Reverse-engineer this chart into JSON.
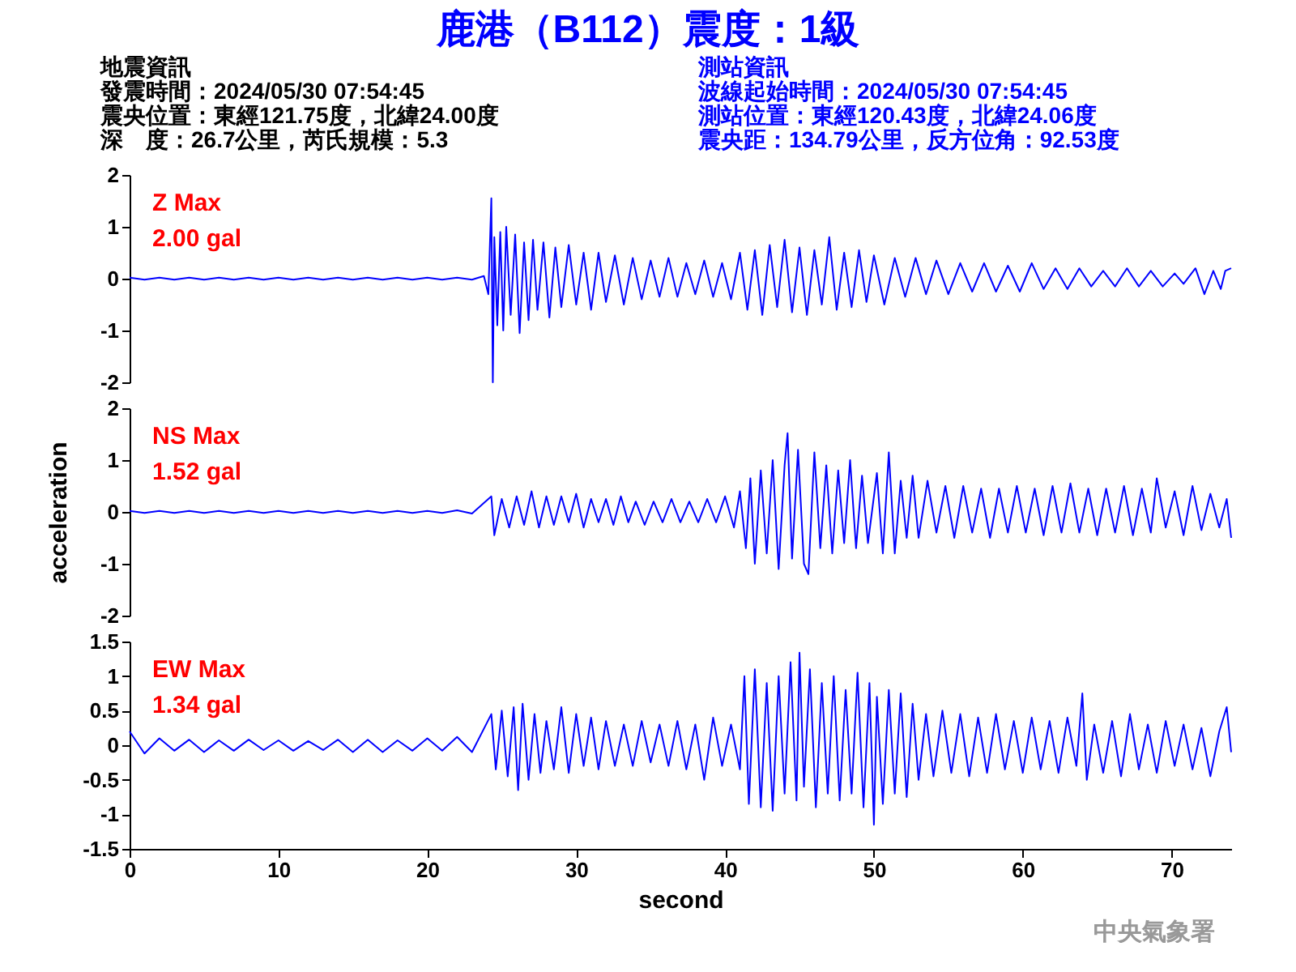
{
  "chart_data": [
    {
      "type": "other",
      "title": "鹿港（B112）震度：1級",
      "annotations": [
        "地震資訊",
        "發震時間：2024/05/30 07:54:45",
        "震央位置：東經121.75度，北緯24.00度",
        "深　度：26.7公里，芮氏規模：5.3",
        "測站資訊",
        "波線起始時間：2024/05/30 07:54:45",
        "測站位置：東經120.43度，北緯24.06度",
        "震央距：134.79公里，反方位角：92.53度"
      ]
    },
    {
      "type": "line",
      "xticks": [
        0,
        10,
        20,
        30,
        40,
        50,
        60,
        70
      ],
      "ylim": [
        -2,
        2
      ],
      "yticks": [
        -2,
        -1,
        0,
        1,
        2
      ],
      "tick_labels": "y",
      "annotations": [
        "Z Max",
        "2.00 gal"
      ],
      "x": [
        0,
        1,
        2,
        3,
        4,
        5,
        6,
        7,
        8,
        9,
        10,
        11,
        12,
        13,
        14,
        15,
        16,
        17,
        18,
        19,
        20,
        21,
        22,
        23,
        23.8,
        24.1,
        24.3,
        24.4,
        24.5,
        24.7,
        24.9,
        25.1,
        25.3,
        25.6,
        25.9,
        26.2,
        26.5,
        26.8,
        27.1,
        27.4,
        27.8,
        28.2,
        28.6,
        29,
        29.5,
        30,
        30.5,
        31,
        31.5,
        32,
        32.6,
        33.2,
        33.8,
        34.4,
        35,
        35.6,
        36.2,
        36.8,
        37.4,
        38,
        38.6,
        39.2,
        39.8,
        40.4,
        41,
        41.5,
        42,
        42.5,
        43,
        43.5,
        44,
        44.5,
        45,
        45.5,
        46,
        46.5,
        47,
        47.5,
        48,
        48.5,
        49,
        49.5,
        50,
        50.7,
        51.4,
        52.1,
        52.8,
        53.5,
        54.2,
        55,
        55.8,
        56.6,
        57.4,
        58.2,
        59,
        59.8,
        60.6,
        61.4,
        62.2,
        63,
        63.8,
        64.6,
        65.4,
        66.2,
        67,
        67.8,
        68.6,
        69.4,
        70.2,
        70.8,
        71.6,
        72.2,
        72.8,
        73.3,
        73.6,
        74
      ],
      "series": [
        {
          "color": "#0000ff",
          "values": [
            0.02,
            -0.02,
            0.02,
            -0.02,
            0.02,
            -0.02,
            0.02,
            -0.02,
            0.02,
            -0.02,
            0.02,
            -0.02,
            0.02,
            -0.02,
            0.02,
            -0.02,
            0.02,
            -0.02,
            0.02,
            -0.02,
            0.02,
            -0.02,
            0.02,
            -0.02,
            0.05,
            -0.3,
            1.55,
            -2.0,
            0.8,
            -0.9,
            0.9,
            -1.0,
            1.0,
            -0.7,
            0.85,
            -1.05,
            0.7,
            -0.8,
            0.75,
            -0.6,
            0.7,
            -0.75,
            0.6,
            -0.55,
            0.65,
            -0.5,
            0.5,
            -0.6,
            0.5,
            -0.45,
            0.45,
            -0.5,
            0.4,
            -0.4,
            0.35,
            -0.35,
            0.4,
            -0.35,
            0.3,
            -0.3,
            0.35,
            -0.35,
            0.3,
            -0.4,
            0.5,
            -0.6,
            0.55,
            -0.7,
            0.65,
            -0.55,
            0.75,
            -0.65,
            0.6,
            -0.7,
            0.55,
            -0.5,
            0.8,
            -0.6,
            0.5,
            -0.55,
            0.55,
            -0.45,
            0.45,
            -0.5,
            0.4,
            -0.35,
            0.4,
            -0.3,
            0.35,
            -0.3,
            0.3,
            -0.25,
            0.3,
            -0.25,
            0.25,
            -0.25,
            0.3,
            -0.2,
            0.2,
            -0.2,
            0.2,
            -0.15,
            0.15,
            -0.15,
            0.2,
            -0.15,
            0.15,
            -0.15,
            0.1,
            -0.1,
            0.2,
            -0.3,
            0.15,
            -0.2,
            0.15,
            0.2
          ]
        }
      ]
    },
    {
      "type": "line",
      "xticks": [
        0,
        10,
        20,
        30,
        40,
        50,
        60,
        70
      ],
      "ylim": [
        -2,
        2
      ],
      "yticks": [
        -2,
        -1,
        0,
        1,
        2
      ],
      "tick_labels": "y",
      "ylabel": "acceleration",
      "annotations": [
        "NS Max",
        "1.52 gal"
      ],
      "x": [
        0,
        1,
        2,
        3,
        4,
        5,
        6,
        7,
        8,
        9,
        10,
        11,
        12,
        13,
        14,
        15,
        16,
        17,
        18,
        19,
        20,
        21,
        22,
        23,
        24.3,
        24.5,
        25,
        25.5,
        26,
        26.5,
        27,
        27.5,
        28,
        28.5,
        29,
        29.5,
        30,
        30.5,
        31,
        31.5,
        32,
        32.5,
        33,
        33.5,
        34,
        34.6,
        35.2,
        35.8,
        36.4,
        37,
        37.6,
        38.2,
        38.8,
        39.4,
        40,
        40.6,
        41,
        41.4,
        41.7,
        42,
        42.4,
        42.8,
        43.2,
        43.6,
        44,
        44.2,
        44.5,
        44.9,
        45.3,
        45.6,
        46,
        46.4,
        46.8,
        47.2,
        47.6,
        48,
        48.4,
        48.8,
        49.2,
        49.6,
        50.2,
        50.6,
        51,
        51.4,
        51.8,
        52.2,
        52.6,
        53,
        53.6,
        54.2,
        54.8,
        55.4,
        56,
        56.6,
        57.2,
        57.8,
        58.4,
        59,
        59.6,
        60.2,
        60.8,
        61.4,
        62,
        62.6,
        63.2,
        63.8,
        64.4,
        65,
        65.6,
        66.2,
        66.8,
        67.4,
        68,
        68.6,
        69,
        69.6,
        70.2,
        70.8,
        71.4,
        72,
        72.6,
        73.2,
        73.7,
        74
      ],
      "series": [
        {
          "color": "#0000ff",
          "values": [
            0.02,
            -0.02,
            0.02,
            -0.02,
            0.02,
            -0.02,
            0.02,
            -0.02,
            0.02,
            -0.02,
            0.02,
            -0.02,
            0.02,
            -0.02,
            0.02,
            -0.02,
            0.02,
            -0.02,
            0.02,
            -0.02,
            0.02,
            -0.02,
            0.03,
            -0.03,
            0.3,
            -0.45,
            0.25,
            -0.3,
            0.3,
            -0.25,
            0.4,
            -0.3,
            0.3,
            -0.25,
            0.3,
            -0.2,
            0.35,
            -0.3,
            0.25,
            -0.2,
            0.25,
            -0.25,
            0.3,
            -0.2,
            0.2,
            -0.25,
            0.2,
            -0.2,
            0.25,
            -0.2,
            0.2,
            -0.2,
            0.25,
            -0.2,
            0.3,
            -0.3,
            0.4,
            -0.7,
            0.65,
            -1.0,
            0.8,
            -0.8,
            1.0,
            -1.1,
            0.9,
            1.52,
            -0.9,
            1.2,
            -1.0,
            -1.2,
            1.15,
            -0.7,
            0.9,
            -0.8,
            0.8,
            -0.6,
            1.0,
            -0.7,
            0.7,
            -0.6,
            0.75,
            -0.8,
            1.15,
            -0.8,
            0.6,
            -0.5,
            0.7,
            -0.5,
            0.6,
            -0.4,
            0.5,
            -0.5,
            0.5,
            -0.4,
            0.45,
            -0.5,
            0.45,
            -0.4,
            0.5,
            -0.4,
            0.45,
            -0.45,
            0.5,
            -0.4,
            0.55,
            -0.4,
            0.45,
            -0.45,
            0.45,
            -0.4,
            0.5,
            -0.45,
            0.45,
            -0.4,
            0.65,
            -0.3,
            0.4,
            -0.45,
            0.5,
            -0.35,
            0.35,
            -0.3,
            0.25,
            -0.5
          ]
        }
      ]
    },
    {
      "type": "line",
      "xlim": [
        0,
        74
      ],
      "xticks": [
        0,
        10,
        20,
        30,
        40,
        50,
        60,
        70
      ],
      "ylim": [
        -1.5,
        1.5
      ],
      "yticks": [
        -1.5,
        -1,
        -0.5,
        0,
        0.5,
        1,
        1.5
      ],
      "xlabel": "second",
      "annotations": [
        "EW Max",
        "1.34 gal",
        "中央氣象署"
      ],
      "x": [
        0,
        1,
        2,
        3,
        4,
        5,
        6,
        7,
        8,
        9,
        10,
        11,
        12,
        13,
        14,
        15,
        16,
        17,
        18,
        19,
        20,
        21,
        22,
        23,
        24.3,
        24.6,
        25,
        25.4,
        25.8,
        26.1,
        26.4,
        26.8,
        27.2,
        27.6,
        28,
        28.5,
        29,
        29.5,
        30,
        30.5,
        31,
        31.5,
        32,
        32.6,
        33.2,
        33.8,
        34.4,
        35,
        35.6,
        36.2,
        36.8,
        37.4,
        38,
        38.6,
        39.2,
        39.8,
        40.4,
        41,
        41.3,
        41.6,
        42,
        42.4,
        42.8,
        43.2,
        43.6,
        44,
        44.4,
        44.8,
        45,
        45.3,
        45.7,
        46.1,
        46.5,
        46.9,
        47.3,
        47.7,
        48.1,
        48.5,
        48.9,
        49.3,
        49.7,
        50,
        50.2,
        50.6,
        51,
        51.4,
        51.8,
        52.2,
        52.6,
        53,
        53.5,
        54,
        54.6,
        55.2,
        55.8,
        56.4,
        57,
        57.6,
        58.2,
        58.8,
        59.4,
        60,
        60.6,
        61.2,
        61.8,
        62.4,
        63,
        63.6,
        64,
        64.3,
        64.8,
        65.4,
        66,
        66.6,
        67.2,
        67.8,
        68.4,
        69,
        69.6,
        70.2,
        70.8,
        71.4,
        72,
        72.6,
        73.2,
        73.7,
        74
      ],
      "series": [
        {
          "color": "#0000ff",
          "values": [
            0.2,
            -0.12,
            0.1,
            -0.08,
            0.08,
            -0.1,
            0.07,
            -0.08,
            0.08,
            -0.07,
            0.07,
            -0.08,
            0.06,
            -0.07,
            0.08,
            -0.1,
            0.08,
            -0.1,
            0.07,
            -0.08,
            0.1,
            -0.08,
            0.12,
            -0.1,
            0.45,
            -0.35,
            0.5,
            -0.45,
            0.55,
            -0.65,
            0.6,
            -0.5,
            0.45,
            -0.4,
            0.35,
            -0.35,
            0.55,
            -0.4,
            0.45,
            -0.3,
            0.4,
            -0.35,
            0.35,
            -0.3,
            0.3,
            -0.3,
            0.35,
            -0.25,
            0.3,
            -0.3,
            0.35,
            -0.35,
            0.3,
            -0.5,
            0.4,
            -0.3,
            0.3,
            -0.35,
            1.0,
            -0.85,
            1.1,
            -0.9,
            0.9,
            -0.95,
            1.0,
            -0.7,
            1.2,
            -0.8,
            1.34,
            -0.6,
            1.1,
            -0.9,
            0.9,
            -0.7,
            1.0,
            -0.8,
            0.8,
            -0.7,
            1.05,
            -0.9,
            0.9,
            -1.15,
            0.7,
            -0.85,
            0.8,
            -0.7,
            0.75,
            -0.75,
            0.6,
            -0.5,
            0.45,
            -0.45,
            0.5,
            -0.4,
            0.45,
            -0.45,
            0.4,
            -0.4,
            0.45,
            -0.35,
            0.35,
            -0.4,
            0.4,
            -0.35,
            0.35,
            -0.4,
            0.4,
            -0.3,
            0.75,
            -0.5,
            0.3,
            -0.4,
            0.35,
            -0.45,
            0.45,
            -0.35,
            0.3,
            -0.4,
            0.35,
            -0.3,
            0.3,
            -0.35,
            0.25,
            -0.45,
            0.2,
            0.55,
            -0.1
          ]
        }
      ]
    }
  ]
}
